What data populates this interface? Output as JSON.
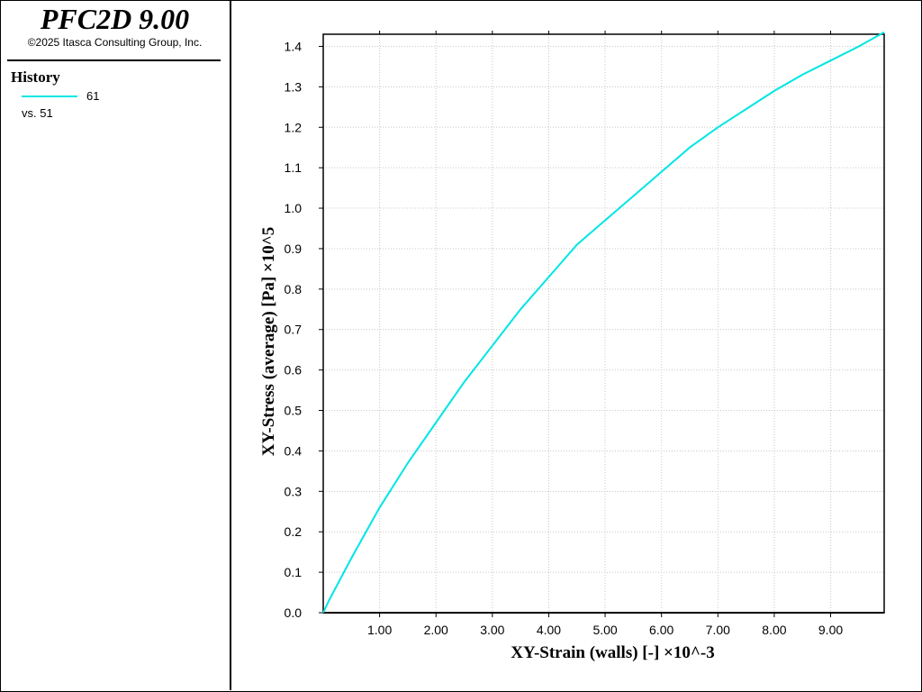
{
  "app": {
    "title": "PFC2D 9.00",
    "copyright": "©2025 Itasca Consulting Group, Inc."
  },
  "legend": {
    "heading": "History",
    "entries": [
      {
        "label": "61",
        "vs_label": "vs. 51",
        "color": "#00e5e5"
      }
    ]
  },
  "chart_data": {
    "type": "line",
    "xlabel": "XY-Strain (walls) [-]  ×10^-3",
    "ylabel": "XY-Stress (average) [Pa]  ×10^5",
    "xlim": [
      0.0,
      9.95
    ],
    "ylim": [
      0.0,
      1.43
    ],
    "x_ticks": [
      1.0,
      2.0,
      3.0,
      4.0,
      5.0,
      6.0,
      7.0,
      8.0,
      9.0
    ],
    "x_tick_labels": [
      "1.00",
      "2.00",
      "3.00",
      "4.00",
      "5.00",
      "6.00",
      "7.00",
      "8.00",
      "9.00"
    ],
    "y_ticks": [
      0.0,
      0.1,
      0.2,
      0.3,
      0.4,
      0.5,
      0.6,
      0.7,
      0.8,
      0.9,
      1.0,
      1.1,
      1.2,
      1.3,
      1.4
    ],
    "y_tick_labels": [
      "0.0",
      "0.1",
      "0.2",
      "0.3",
      "0.4",
      "0.5",
      "0.6",
      "0.7",
      "0.8",
      "0.9",
      "1.0",
      "1.1",
      "1.2",
      "1.3",
      "1.4"
    ],
    "grid": true,
    "series": [
      {
        "name": "61",
        "color": "#00e5e5",
        "x": [
          0.0,
          0.1,
          0.5,
          1.0,
          1.5,
          2.0,
          2.5,
          3.0,
          3.5,
          4.0,
          4.5,
          5.0,
          5.5,
          6.0,
          6.5,
          7.0,
          7.5,
          8.0,
          8.5,
          9.0,
          9.5,
          9.95
        ],
        "y": [
          0.0,
          0.03,
          0.135,
          0.26,
          0.37,
          0.47,
          0.57,
          0.66,
          0.75,
          0.83,
          0.91,
          0.97,
          1.03,
          1.09,
          1.15,
          1.2,
          1.245,
          1.29,
          1.33,
          1.365,
          1.4,
          1.435
        ]
      }
    ]
  }
}
